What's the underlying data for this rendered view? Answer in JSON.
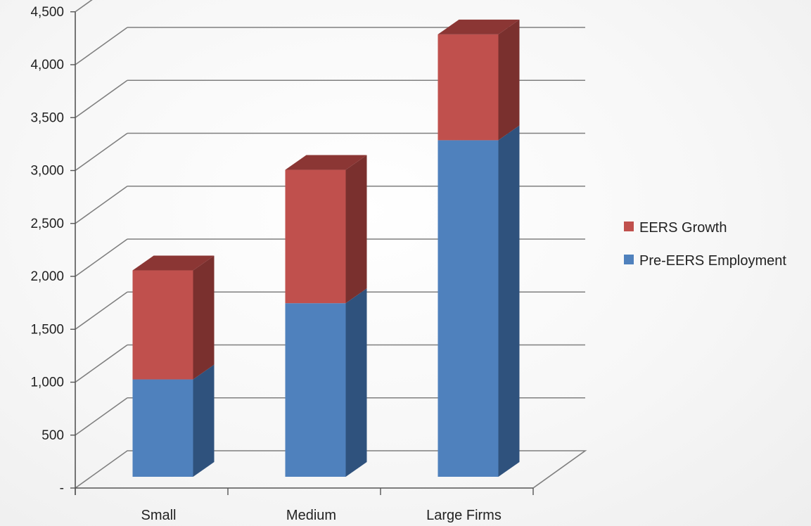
{
  "chart_data": {
    "type": "bar",
    "stacked": true,
    "style": "3d",
    "categories": [
      "Small",
      "Medium",
      "Large Firms"
    ],
    "series": [
      {
        "name": "Pre-EERS Employment",
        "values": [
          920,
          1640,
          3180
        ],
        "color": "#4f81bd",
        "side_color": "#2f527d",
        "top_color": "#3a6296"
      },
      {
        "name": "EERS Growth",
        "values": [
          1030,
          1260,
          1000
        ],
        "color": "#c0504d",
        "side_color": "#7a302e",
        "top_color": "#8b3634"
      }
    ],
    "title": "",
    "xlabel": "",
    "ylabel": "",
    "ylim": [
      0,
      4500
    ],
    "yticks": [
      0,
      500,
      1000,
      1500,
      2000,
      2500,
      3000,
      3500,
      4000,
      4500
    ],
    "ytick_labels": [
      "-",
      "500",
      "1,000",
      "1,500",
      "2,000",
      "2,500",
      "3,000",
      "3,500",
      "4,000",
      "4,500"
    ],
    "grid": true,
    "legend_position": "right"
  }
}
